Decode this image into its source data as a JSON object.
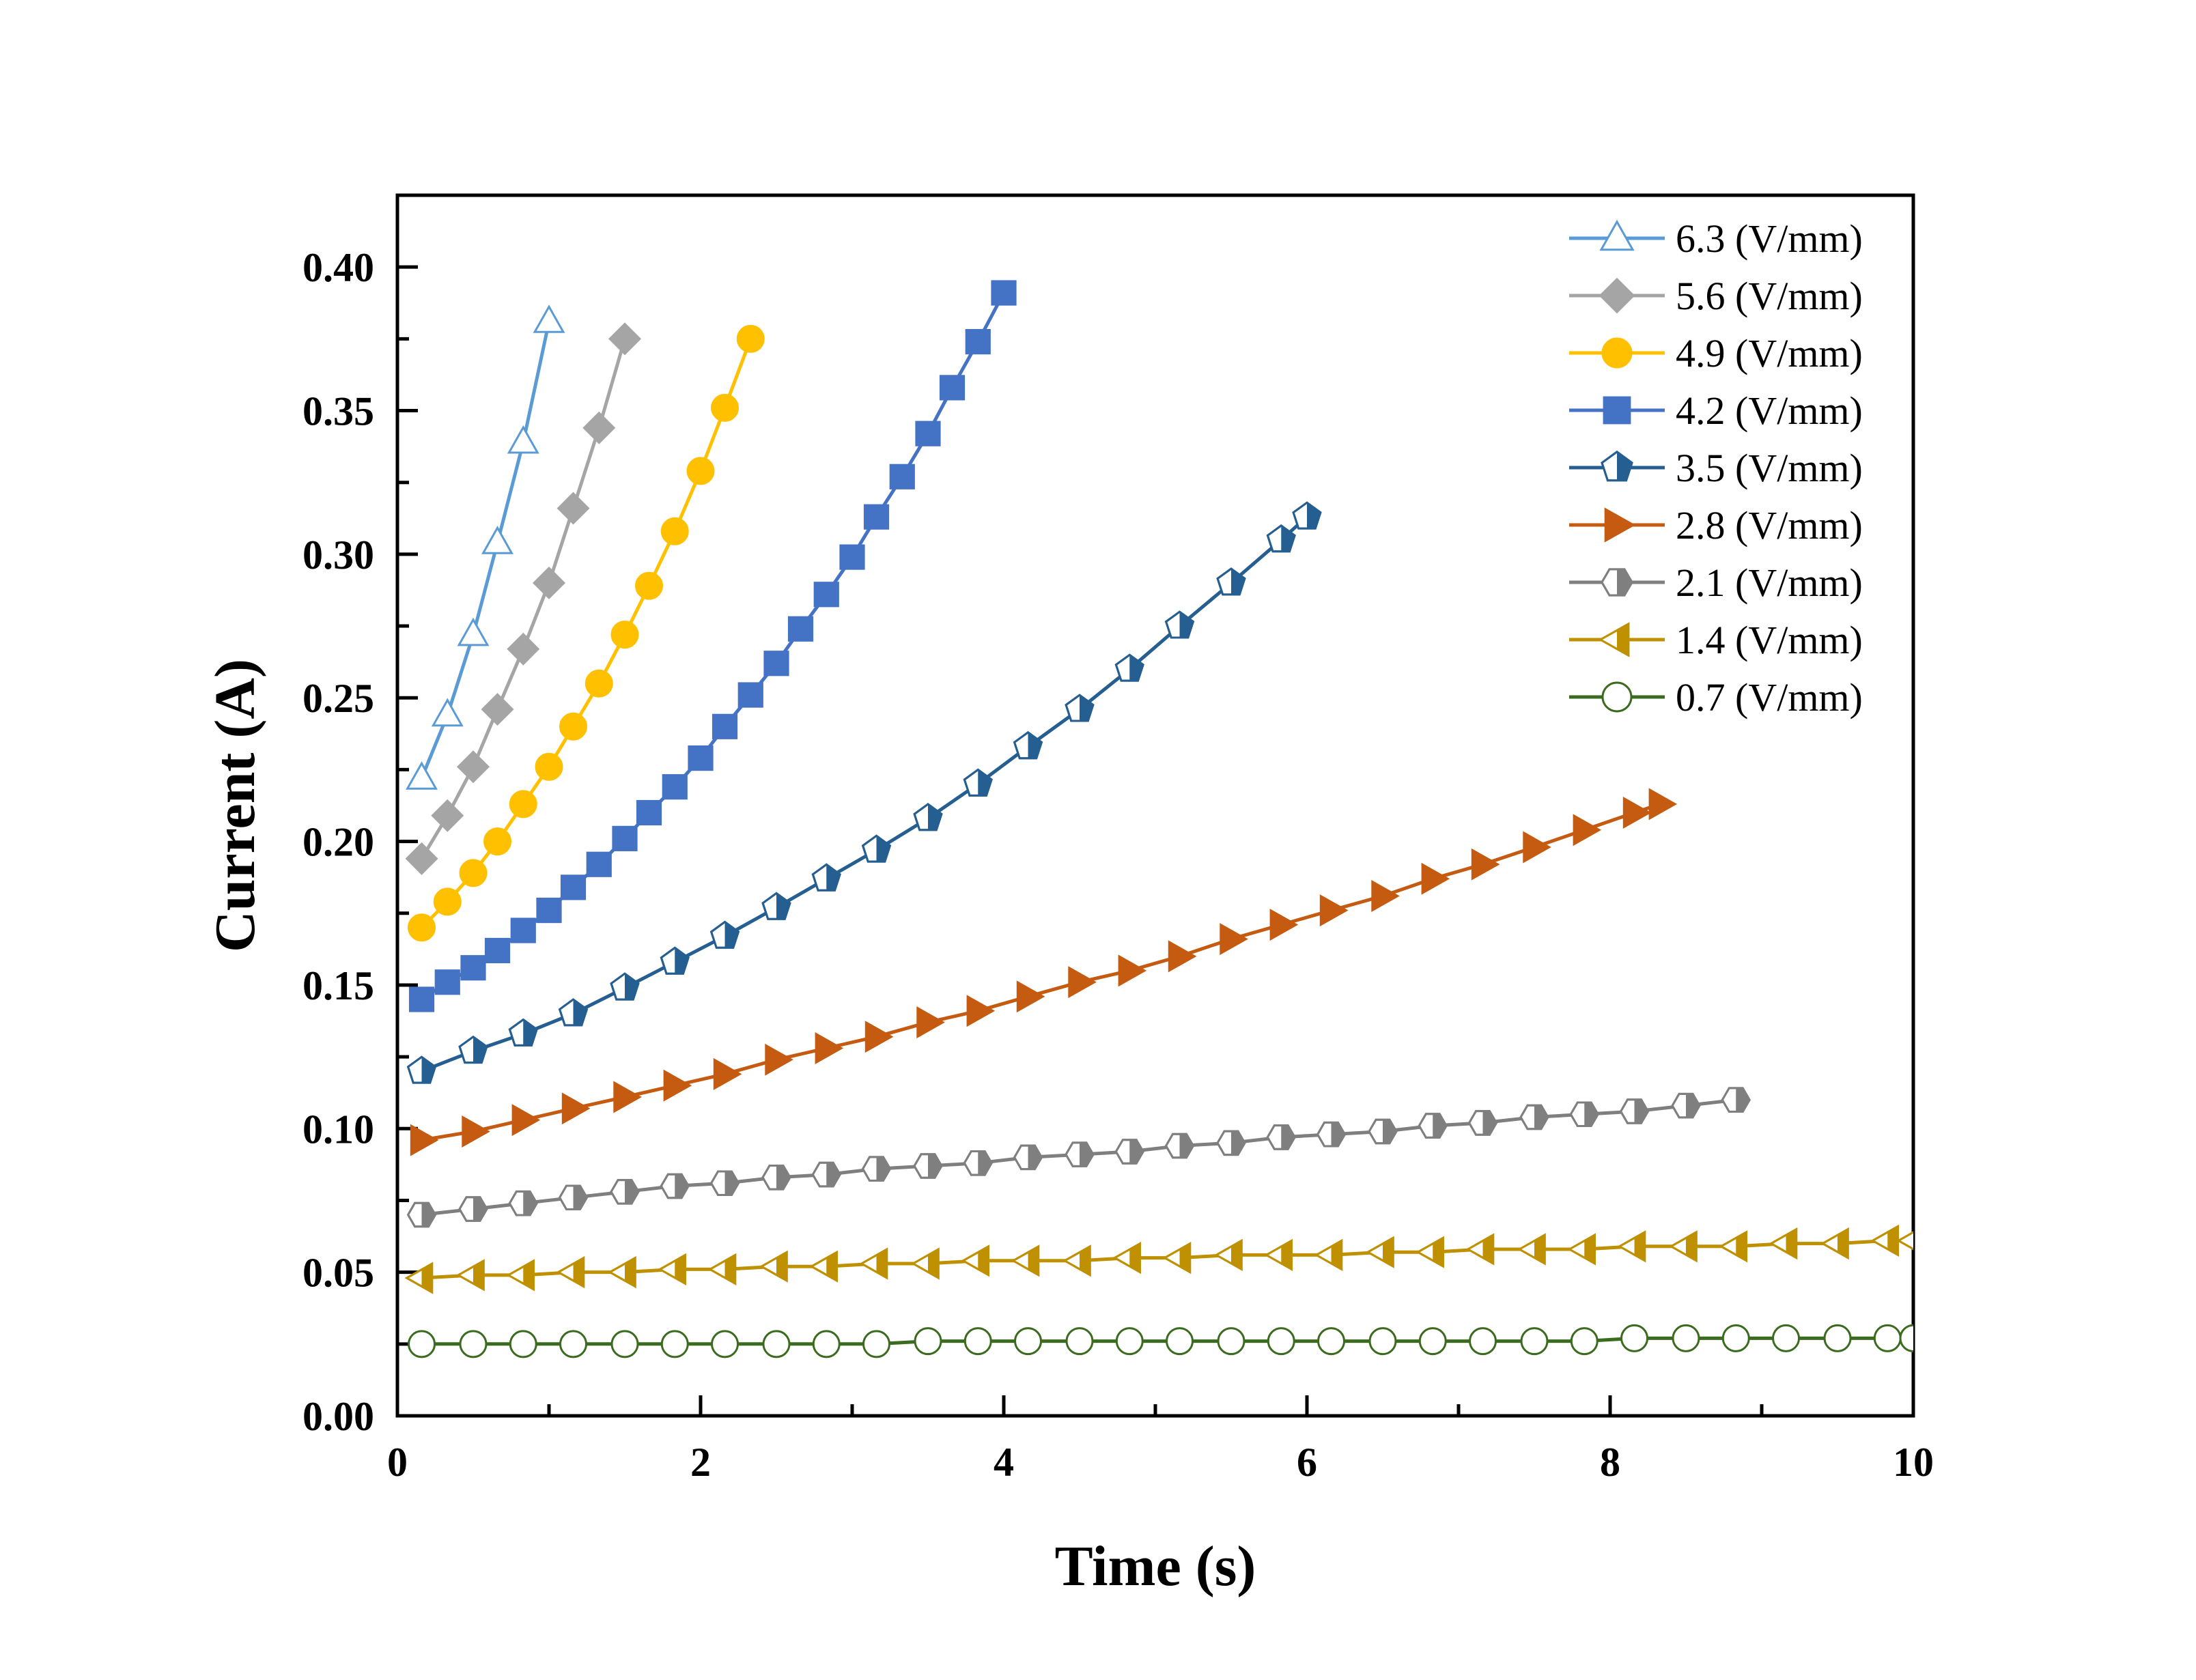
{
  "chart_data": {
    "type": "line",
    "title": "",
    "xlabel": "Time (s)",
    "ylabel": "Current (A)",
    "xlim": [
      0,
      10
    ],
    "ylim": [
      0,
      0.425
    ],
    "xticks": [
      0,
      2,
      4,
      6,
      8,
      10
    ],
    "xtick_labels": [
      "0",
      "2",
      "4",
      "6",
      "8",
      "10"
    ],
    "yticks": [
      0,
      0.05,
      0.1,
      0.15,
      0.2,
      0.25,
      0.3,
      0.35,
      0.4
    ],
    "ytick_labels": [
      "0.00",
      "0.05",
      "0.10",
      "0.15",
      "0.20",
      "0.25",
      "0.30",
      "0.35",
      "0.40"
    ],
    "grid": false,
    "legend_position": "top-right",
    "series": [
      {
        "name": "6.3 (V/mm)",
        "color": "#5b9bd5",
        "marker": "triangle-up",
        "fill": "none",
        "x": [
          0.16,
          0.33,
          0.5,
          0.66,
          0.83,
          1.0
        ],
        "y": [
          0.222,
          0.244,
          0.272,
          0.304,
          0.339,
          0.381
        ]
      },
      {
        "name": "5.6 (V/mm)",
        "color": "#a5a5a5",
        "marker": "diamond",
        "fill": "solid",
        "x": [
          0.16,
          0.33,
          0.5,
          0.66,
          0.83,
          1.0,
          1.16,
          1.33,
          1.5
        ],
        "y": [
          0.194,
          0.209,
          0.226,
          0.246,
          0.267,
          0.29,
          0.316,
          0.344,
          0.375
        ]
      },
      {
        "name": "4.9 (V/mm)",
        "color": "#ffc000",
        "marker": "circle",
        "fill": "solid",
        "x": [
          0.16,
          0.33,
          0.5,
          0.66,
          0.83,
          1.0,
          1.16,
          1.33,
          1.5,
          1.66,
          1.83,
          2.0,
          2.16,
          2.33
        ],
        "y": [
          0.17,
          0.179,
          0.189,
          0.2,
          0.213,
          0.226,
          0.24,
          0.255,
          0.272,
          0.289,
          0.308,
          0.329,
          0.351,
          0.375
        ]
      },
      {
        "name": "4.2 (V/mm)",
        "color": "#4472c4",
        "marker": "square",
        "fill": "solid",
        "x": [
          0.16,
          0.33,
          0.5,
          0.66,
          0.83,
          1.0,
          1.16,
          1.33,
          1.5,
          1.66,
          1.83,
          2.0,
          2.16,
          2.33,
          2.5,
          2.66,
          2.83,
          3.0,
          3.16,
          3.33,
          3.5,
          3.66,
          3.83,
          4.0
        ],
        "y": [
          0.145,
          0.151,
          0.156,
          0.162,
          0.169,
          0.176,
          0.184,
          0.192,
          0.201,
          0.21,
          0.219,
          0.229,
          0.24,
          0.251,
          0.262,
          0.274,
          0.286,
          0.299,
          0.313,
          0.327,
          0.342,
          0.358,
          0.374,
          0.391
        ]
      },
      {
        "name": "3.5 (V/mm)",
        "color": "#255e91",
        "marker": "pentagon-half",
        "fill": "half",
        "x": [
          0.16,
          0.5,
          0.83,
          1.16,
          1.5,
          1.83,
          2.16,
          2.5,
          2.83,
          3.16,
          3.5,
          3.83,
          4.16,
          4.5,
          4.83,
          5.16,
          5.5,
          5.83,
          6.0
        ],
        "y": [
          0.12,
          0.127,
          0.133,
          0.14,
          0.149,
          0.158,
          0.167,
          0.177,
          0.187,
          0.197,
          0.208,
          0.22,
          0.233,
          0.246,
          0.26,
          0.275,
          0.29,
          0.305,
          0.313
        ]
      },
      {
        "name": "2.8 (V/mm)",
        "color": "#c55a11",
        "marker": "triangle-right",
        "fill": "solid",
        "x": [
          0.16,
          0.5,
          0.83,
          1.16,
          1.5,
          1.83,
          2.16,
          2.5,
          2.83,
          3.16,
          3.5,
          3.83,
          4.16,
          4.5,
          4.83,
          5.16,
          5.5,
          5.83,
          6.16,
          6.5,
          6.83,
          7.16,
          7.5,
          7.83,
          8.16,
          8.33
        ],
        "y": [
          0.096,
          0.099,
          0.103,
          0.107,
          0.111,
          0.115,
          0.119,
          0.124,
          0.128,
          0.132,
          0.137,
          0.141,
          0.146,
          0.151,
          0.155,
          0.16,
          0.166,
          0.171,
          0.176,
          0.181,
          0.187,
          0.192,
          0.198,
          0.204,
          0.21,
          0.213
        ]
      },
      {
        "name": "2.1 (V/mm)",
        "color": "#7f7f7f",
        "marker": "hexagon-half",
        "fill": "half",
        "x": [
          0.16,
          0.5,
          0.83,
          1.16,
          1.5,
          1.83,
          2.16,
          2.5,
          2.83,
          3.16,
          3.5,
          3.83,
          4.16,
          4.5,
          4.83,
          5.16,
          5.5,
          5.83,
          6.16,
          6.5,
          6.83,
          7.16,
          7.5,
          7.83,
          8.16,
          8.5,
          8.83
        ],
        "y": [
          0.07,
          0.072,
          0.074,
          0.076,
          0.078,
          0.08,
          0.081,
          0.083,
          0.084,
          0.086,
          0.087,
          0.088,
          0.09,
          0.091,
          0.092,
          0.094,
          0.095,
          0.097,
          0.098,
          0.099,
          0.101,
          0.102,
          0.104,
          0.105,
          0.106,
          0.108,
          0.11
        ]
      },
      {
        "name": "1.4 (V/mm)",
        "color": "#bf9000",
        "marker": "triangle-left",
        "fill": "half",
        "x": [
          0.16,
          0.5,
          0.83,
          1.16,
          1.5,
          1.83,
          2.16,
          2.5,
          2.83,
          3.16,
          3.5,
          3.83,
          4.16,
          4.5,
          4.83,
          5.16,
          5.5,
          5.83,
          6.16,
          6.5,
          6.83,
          7.16,
          7.5,
          7.83,
          8.16,
          8.5,
          8.83,
          9.16,
          9.5,
          9.83,
          10.0
        ],
        "y": [
          0.048,
          0.049,
          0.049,
          0.05,
          0.05,
          0.051,
          0.051,
          0.052,
          0.052,
          0.053,
          0.053,
          0.054,
          0.054,
          0.054,
          0.055,
          0.055,
          0.056,
          0.056,
          0.056,
          0.057,
          0.057,
          0.058,
          0.058,
          0.058,
          0.059,
          0.059,
          0.059,
          0.06,
          0.06,
          0.061,
          0.061
        ]
      },
      {
        "name": "0.7 (V/mm)",
        "color": "#3a6b1f",
        "marker": "circle",
        "fill": "none",
        "x": [
          0.16,
          0.5,
          0.83,
          1.16,
          1.5,
          1.83,
          2.16,
          2.5,
          2.83,
          3.16,
          3.5,
          3.83,
          4.16,
          4.5,
          4.83,
          5.16,
          5.5,
          5.83,
          6.16,
          6.5,
          6.83,
          7.16,
          7.5,
          7.83,
          8.16,
          8.5,
          8.83,
          9.16,
          9.5,
          9.83,
          10.0
        ],
        "y": [
          0.025,
          0.025,
          0.025,
          0.025,
          0.025,
          0.025,
          0.025,
          0.025,
          0.025,
          0.025,
          0.026,
          0.026,
          0.026,
          0.026,
          0.026,
          0.026,
          0.026,
          0.026,
          0.026,
          0.026,
          0.026,
          0.026,
          0.026,
          0.026,
          0.027,
          0.027,
          0.027,
          0.027,
          0.027,
          0.027,
          0.027
        ]
      }
    ]
  }
}
